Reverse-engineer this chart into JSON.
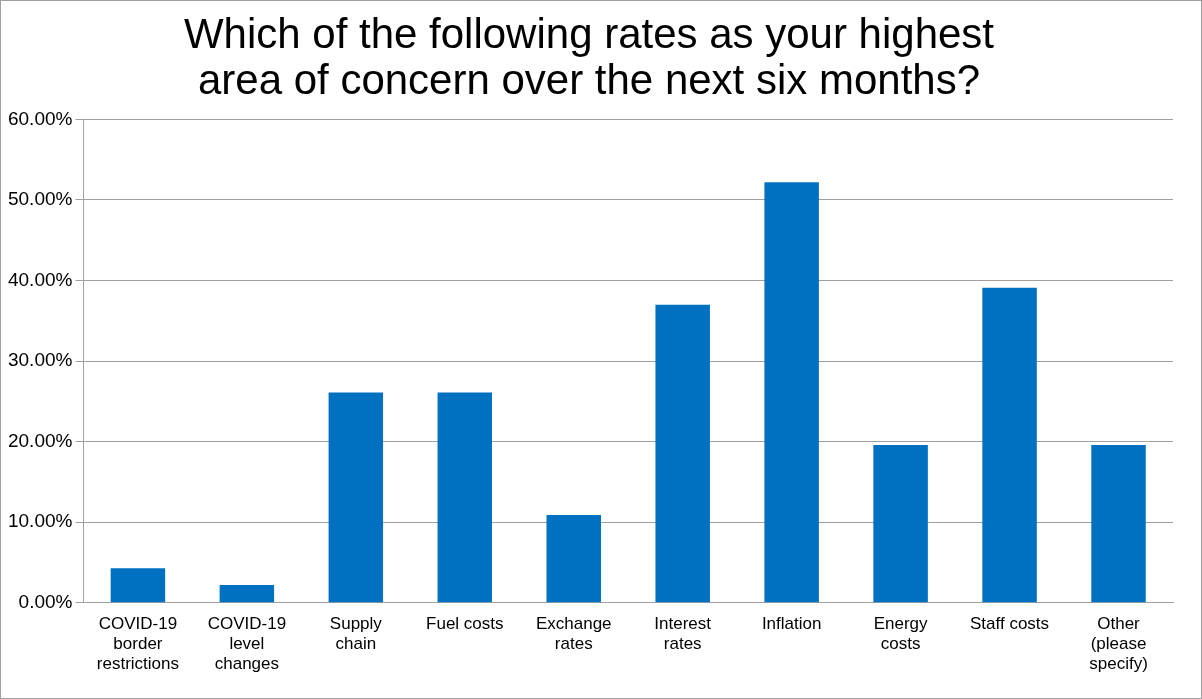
{
  "chart_data": {
    "type": "bar",
    "title": "Which of the following rates as your highest area of concern over the next six months?",
    "categories": [
      "COVID-19 border restrictions",
      "COVID-19 level changes",
      "Supply chain",
      "Fuel costs",
      "Exchange rates",
      "Interest rates",
      "Inflation",
      "Energy costs",
      "Staff costs",
      "Other (please specify)"
    ],
    "values": [
      4.3,
      2.2,
      26.1,
      26.1,
      10.9,
      37,
      52.2,
      19.6,
      39.1,
      19.6
    ],
    "color": "#0070c0",
    "ylim": [
      0,
      60
    ],
    "yticks": [
      {
        "value": 0,
        "label": "0.00%"
      },
      {
        "value": 10,
        "label": "10.00%"
      },
      {
        "value": 20,
        "label": "20.00%"
      },
      {
        "value": 30,
        "label": "30.00%"
      },
      {
        "value": 40,
        "label": "40.00%"
      },
      {
        "value": 50,
        "label": "50.00%"
      },
      {
        "value": 60,
        "label": "60.00%"
      }
    ],
    "grid": "y",
    "legend": false
  }
}
